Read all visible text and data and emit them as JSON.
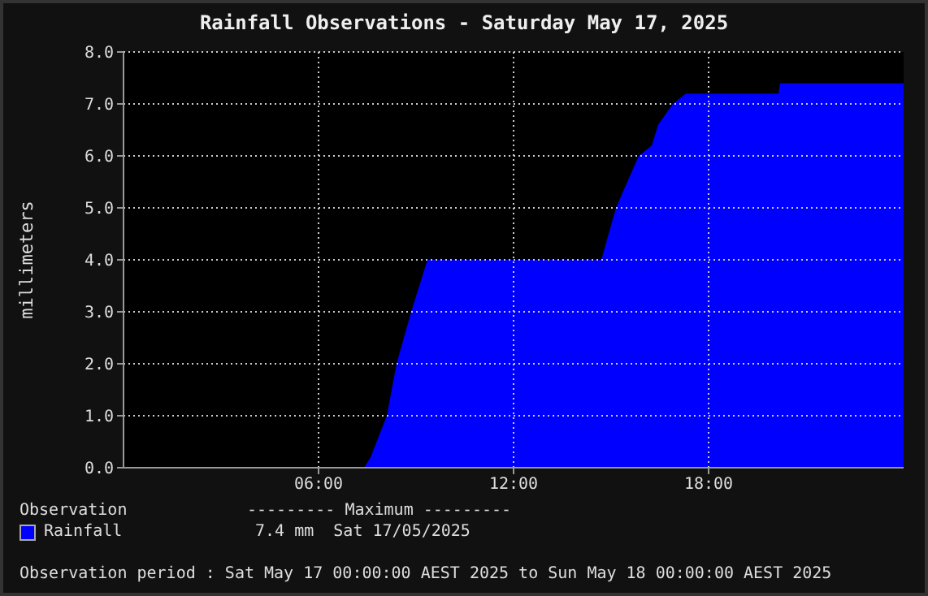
{
  "chart_data": {
    "type": "area",
    "title": "Rainfall Observations - Saturday May 17, 2025",
    "ylabel": "millimeters",
    "x": [
      0,
      7.4,
      7.6,
      8.1,
      8.4,
      8.85,
      9.1,
      9.35,
      14.7,
      15.15,
      15.85,
      16.25,
      16.45,
      16.9,
      17.3,
      20.15,
      20.2,
      24
    ],
    "series": [
      {
        "name": "Rainfall",
        "color": "#0000ff",
        "values": [
          0,
          0,
          0.2,
          1.0,
          2.0,
          3.0,
          3.5,
          4.0,
          4.0,
          5.0,
          6.0,
          6.2,
          6.6,
          7.0,
          7.2,
          7.2,
          7.4,
          7.4
        ]
      }
    ],
    "xlim": [
      0,
      24
    ],
    "xticks": [
      {
        "value": 6,
        "label": "06:00"
      },
      {
        "value": 12,
        "label": "12:00"
      },
      {
        "value": 18,
        "label": "18:00"
      }
    ],
    "ylim": [
      0,
      8
    ],
    "yticks": [
      {
        "value": 0,
        "label": "0.0"
      },
      {
        "value": 1,
        "label": "1.0"
      },
      {
        "value": 2,
        "label": "2.0"
      },
      {
        "value": 3,
        "label": "3.0"
      },
      {
        "value": 4,
        "label": "4.0"
      },
      {
        "value": 5,
        "label": "5.0"
      },
      {
        "value": 6,
        "label": "6.0"
      },
      {
        "value": 7,
        "label": "7.0"
      },
      {
        "value": 8,
        "label": "8.0"
      }
    ],
    "grid": true,
    "legend": "bottom",
    "annotations": [
      "Observation",
      "--------- Maximum ---------",
      "7.4 mm  Sat 17/05/2025",
      "Observation period : Sat May 17 00:00:00 AEST 2025 to Sun May 18 00:00:00 AEST 2025"
    ]
  }
}
